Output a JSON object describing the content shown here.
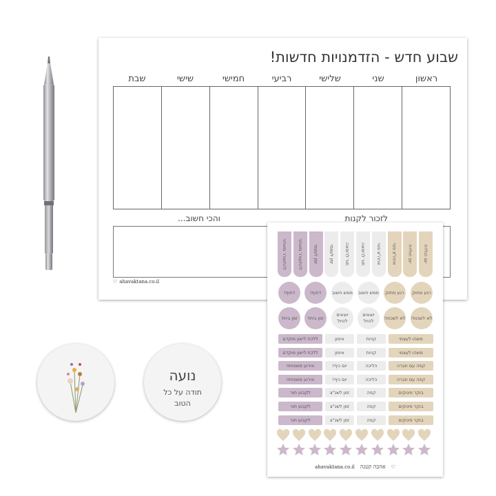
{
  "planner": {
    "title": "שבוע חדש - הזדמנויות חדשות!",
    "days": [
      "ראשון",
      "שני",
      "שלישי",
      "רביעי",
      "חמישי",
      "שישי",
      "שבת"
    ],
    "shopping_label": "לזכור לקנות",
    "important_label": "והכי חשוב...",
    "website": "ahavaktana.co.il"
  },
  "card": {
    "name": "נועה",
    "line1": "תודה על כל",
    "line2": "הטוב"
  },
  "stickers": {
    "colors": {
      "purple": "#cbb8cb",
      "grey": "#ececec",
      "beige": "#e3d5bb"
    },
    "tabs": [
      {
        "label": "להתעורר מאוחר",
        "color": "purple"
      },
      {
        "label": "להתעורר מאוחר",
        "color": "purple"
      },
      {
        "label": "זמן לעצמי",
        "color": "purple"
      },
      {
        "label": "זמן לעצמי",
        "color": "grey"
      },
      {
        "label": "תור לרופאה",
        "color": "grey"
      },
      {
        "label": "תור לרופאה",
        "color": "grey"
      },
      {
        "label": "אחה\"צ פנוי",
        "color": "grey"
      },
      {
        "label": "אחה\"צ פנוי",
        "color": "beige"
      },
      {
        "label": "יום הולדת",
        "color": "beige"
      },
      {
        "label": "יום הולדת",
        "color": "beige"
      }
    ],
    "circles": [
      [
        {
          "label": "דחוף!",
          "color": "purple"
        },
        {
          "label": "דחוף!",
          "color": "purple"
        },
        {
          "label": "ממש חשוב",
          "color": "grey"
        },
        {
          "label": "ממש חשוב",
          "color": "grey"
        },
        {
          "label": "רגע מתוק",
          "color": "beige"
        },
        {
          "label": "רגע מתוק",
          "color": "beige"
        }
      ],
      [
        {
          "label": "זמן ביחד",
          "color": "purple"
        },
        {
          "label": "זמן ביחד",
          "color": "purple"
        },
        {
          "label": "יוצאים לטיול",
          "color": "grey"
        },
        {
          "label": "יוצאים לטיול",
          "color": "grey"
        },
        {
          "label": "לא לשכוח!",
          "color": "beige"
        },
        {
          "label": "לא לשכוח!",
          "color": "beige"
        }
      ]
    ],
    "rows": [
      [
        "ללכת לישון מוקדם",
        "אימון",
        "קניות",
        "משהו לעצמי"
      ],
      [
        "ללכת לישון מוקדם",
        "אימון",
        "קניות",
        "משהו לעצמי"
      ],
      [
        "אירוע משפחתי",
        "יום כיף!",
        "הליכה",
        "קפה עם חברה"
      ],
      [
        "אירוע משפחתי",
        "יום כיף!",
        "הליכה",
        "קפה עם חברה"
      ],
      [
        "לקבוע תור",
        "זמן לשנ\"צ",
        "קפה",
        "בוקר פינוקים"
      ],
      [
        "לקבוע תור",
        "זמן לשנ\"צ",
        "קפה",
        "בוקר פינוקים"
      ],
      [
        "לקבוע תור",
        "זמן לשנ\"צ",
        "קפה",
        "בוקר פינוקים"
      ]
    ],
    "row_colors": [
      "purple",
      "grey",
      "grey",
      "beige"
    ],
    "hearts_count": 10,
    "stars_count": 10,
    "brand": "אהבה קטנה",
    "website": "ahavaktana.co.il"
  }
}
